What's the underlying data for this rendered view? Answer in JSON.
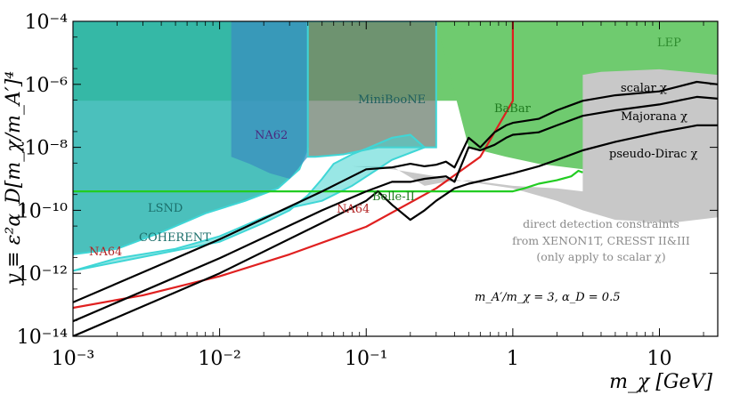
{
  "chart_data": {
    "type": "area",
    "xlabel": "m_χ [GeV]",
    "ylabel": "y ≡ ε²α_D[m_χ/m_A′]⁴",
    "xscale": "log",
    "yscale": "log",
    "xlim": [
      0.001,
      25
    ],
    "ylim": [
      1e-14,
      0.0001
    ],
    "x_ticks": [
      {
        "value": 0.001,
        "label": "10⁻³"
      },
      {
        "value": 0.01,
        "label": "10⁻²"
      },
      {
        "value": 0.1,
        "label": "10⁻¹"
      },
      {
        "value": 1,
        "label": "1"
      },
      {
        "value": 10,
        "label": "10"
      }
    ],
    "y_ticks": [
      {
        "value": 1e-14,
        "label": "10⁻¹⁴"
      },
      {
        "value": 1e-12,
        "label": "10⁻¹²"
      },
      {
        "value": 1e-10,
        "label": "10⁻¹⁰"
      },
      {
        "value": 1e-08,
        "label": "10⁻⁸"
      },
      {
        "value": 1e-06,
        "label": "10⁻⁶"
      },
      {
        "value": 0.0001,
        "label": "10⁻⁴"
      }
    ],
    "colors": {
      "lep": "#6fcb6f",
      "babar": "#6fcb6f",
      "lsnd": "#2bb5b0",
      "na62": "#3a8fbf",
      "miniboone": "#6e8070",
      "coherent": "#45d3cf",
      "direct_detection": "#c8c8c8",
      "na64_line": "#e02020",
      "belle_line": "#22cc22",
      "relic_line": "#000000",
      "na64_label": "#b22222",
      "na62_label": "#4b2a80",
      "lsnd_label": "#1a6e6a",
      "belle_label": "#1f7a1f",
      "lep_label": "#2e8b2e"
    },
    "regions": [
      {
        "name": "LEP",
        "x": [
          0.001,
          25,
          25,
          0.001
        ],
        "y": [
          0.0001,
          0.0001,
          3e-07,
          3e-07
        ]
      },
      {
        "name": "BaBar",
        "x": [
          0.001,
          0.3,
          0.5,
          0.9,
          1.5,
          3,
          6,
          10,
          25,
          25,
          0.001
        ],
        "y": [
          0.0001,
          0.0001,
          1e-08,
          5e-09,
          3e-09,
          2e-09,
          2e-09,
          2.5e-09,
          3e-09,
          0.0001,
          0.0001
        ]
      },
      {
        "name": "direct detection constraints",
        "x": [
          0.08,
          0.15,
          0.25,
          0.35,
          0.5,
          1,
          2,
          3,
          3,
          4,
          10,
          25,
          25,
          12,
          5,
          3,
          2,
          1,
          0.5,
          0.3,
          0.15,
          0.08
        ],
        "y": [
          2.5e-09,
          2.5e-09,
          6e-10,
          8e-10,
          9e-10,
          6e-10,
          5e-10,
          4e-10,
          2e-06,
          2.5e-06,
          3e-06,
          2e-06,
          6e-11,
          4e-11,
          5e-11,
          1e-10,
          2e-10,
          5e-10,
          8e-10,
          1.2e-09,
          2e-09,
          2.5e-09
        ]
      },
      {
        "name": "LSND",
        "x": [
          0.001,
          0.04,
          0.04,
          0.035,
          0.025,
          0.015,
          0.008,
          0.004,
          0.002,
          0.001
        ],
        "y": [
          0.0001,
          0.0001,
          1e-08,
          2e-09,
          5e-10,
          2e-10,
          8e-11,
          2e-11,
          6e-12,
          4e-12
        ]
      },
      {
        "name": "NA62",
        "x": [
          0.012,
          0.04,
          0.04,
          0.03,
          0.022,
          0.016,
          0.012
        ],
        "y": [
          0.0001,
          0.0001,
          5e-09,
          1e-09,
          1.5e-09,
          3e-09,
          5e-09
        ]
      },
      {
        "name": "MiniBooNE",
        "x": [
          0.04,
          0.3,
          0.3,
          0.2,
          0.12,
          0.07,
          0.045,
          0.04
        ],
        "y": [
          0.0001,
          0.0001,
          1e-08,
          1e-08,
          1e-08,
          6e-09,
          5e-09,
          5e-09
        ]
      },
      {
        "name": "COHERENT",
        "x": [
          0.001,
          0.01,
          0.02,
          0.03,
          0.04,
          0.05,
          0.06,
          0.08,
          0.1,
          0.15,
          0.2,
          0.25,
          0.25,
          0.15,
          0.08,
          0.05,
          0.03,
          0.02,
          0.01,
          0.005,
          0.002,
          0.001
        ],
        "y": [
          1.2e-12,
          1e-11,
          4e-11,
          1e-10,
          3e-10,
          1e-09,
          3e-09,
          6e-09,
          9e-09,
          2e-08,
          2.5e-08,
          1e-08,
          1e-08,
          4e-09,
          6e-10,
          2e-10,
          1.2e-10,
          6e-11,
          1.5e-11,
          6e-12,
          3e-12,
          1.2e-12
        ]
      }
    ],
    "series": [
      {
        "name": "NA64",
        "color": "#e02020",
        "x": [
          0.001,
          0.003,
          0.01,
          0.03,
          0.1,
          0.3,
          0.6,
          1,
          1,
          1
        ],
        "y": [
          8e-14,
          2e-13,
          8e-13,
          4e-12,
          3e-11,
          5e-10,
          5e-09,
          3e-07,
          5e-06,
          0.0001
        ]
      },
      {
        "name": "Belle-II",
        "color": "#22cc22",
        "x": [
          0.001,
          0.1,
          0.5,
          0.8,
          1,
          1.2,
          1.5,
          2,
          2.5,
          2.8,
          3
        ],
        "y": [
          4e-10,
          4e-10,
          4e-10,
          4e-10,
          4e-10,
          5e-10,
          7e-10,
          9e-10,
          1.2e-09,
          1.8e-09,
          1.6e-09
        ]
      },
      {
        "name": "scalar χ",
        "color": "#000000",
        "x": [
          0.001,
          0.01,
          0.05,
          0.1,
          0.15,
          0.2,
          0.25,
          0.3,
          0.35,
          0.4,
          0.5,
          0.6,
          0.75,
          0.9,
          1,
          1.5,
          2,
          3,
          5,
          10,
          18,
          25
        ],
        "y": [
          1.2e-13,
          1.2e-11,
          4e-10,
          2e-09,
          2.3e-09,
          3e-09,
          2.5e-09,
          2.8e-09,
          3.5e-09,
          2.3e-09,
          2e-08,
          1e-08,
          3e-08,
          5e-08,
          6e-08,
          8e-08,
          1.5e-07,
          3e-07,
          4.5e-07,
          6e-07,
          1.2e-06,
          1e-06
        ]
      },
      {
        "name": "Majorana χ",
        "color": "#000000",
        "x": [
          0.001,
          0.01,
          0.05,
          0.1,
          0.15,
          0.2,
          0.25,
          0.3,
          0.35,
          0.4,
          0.5,
          0.6,
          0.75,
          0.9,
          1,
          1.5,
          2,
          3,
          5,
          10,
          18,
          25
        ],
        "y": [
          3e-14,
          3e-12,
          1e-10,
          4e-10,
          8e-10,
          8e-10,
          1e-09,
          1.1e-09,
          1.2e-09,
          8e-10,
          1e-08,
          8e-09,
          1.2e-08,
          2e-08,
          2.5e-08,
          3e-08,
          5e-08,
          1e-07,
          1.5e-07,
          2.3e-07,
          4e-07,
          3.5e-07
        ]
      },
      {
        "name": "pseudo-Dirac χ",
        "color": "#000000",
        "x": [
          0.001,
          0.01,
          0.05,
          0.1,
          0.12,
          0.15,
          0.2,
          0.25,
          0.3,
          0.4,
          0.5,
          0.7,
          1,
          1.5,
          2,
          3,
          5,
          10,
          18,
          25
        ],
        "y": [
          1e-14,
          1e-12,
          4e-11,
          2e-10,
          4e-10,
          1.5e-10,
          5e-11,
          1e-10,
          2e-10,
          5e-10,
          7e-10,
          1e-09,
          1.5e-09,
          2.5e-09,
          4e-09,
          8e-09,
          1.5e-08,
          3e-08,
          5e-08,
          5e-08
        ]
      }
    ],
    "annotations": {
      "lep": "LEP",
      "miniboone": "MiniBooNE",
      "babar": "BaBar",
      "na62": "NA62",
      "lsnd": "LSND",
      "coherent": "COHERENT",
      "na64_left": "NA64",
      "na64_center": "NA64",
      "belle": "Belle-II",
      "scalar": "scalar χ",
      "majorana": "Majorana χ",
      "pseudo": "pseudo-Dirac χ",
      "dd_line1": "direct detection constraints",
      "dd_line2": "from XENON1T, CRESST II&III",
      "dd_line3": "(only apply to scalar χ)",
      "params": "m_A′/m_χ = 3, α_D = 0.5"
    }
  }
}
